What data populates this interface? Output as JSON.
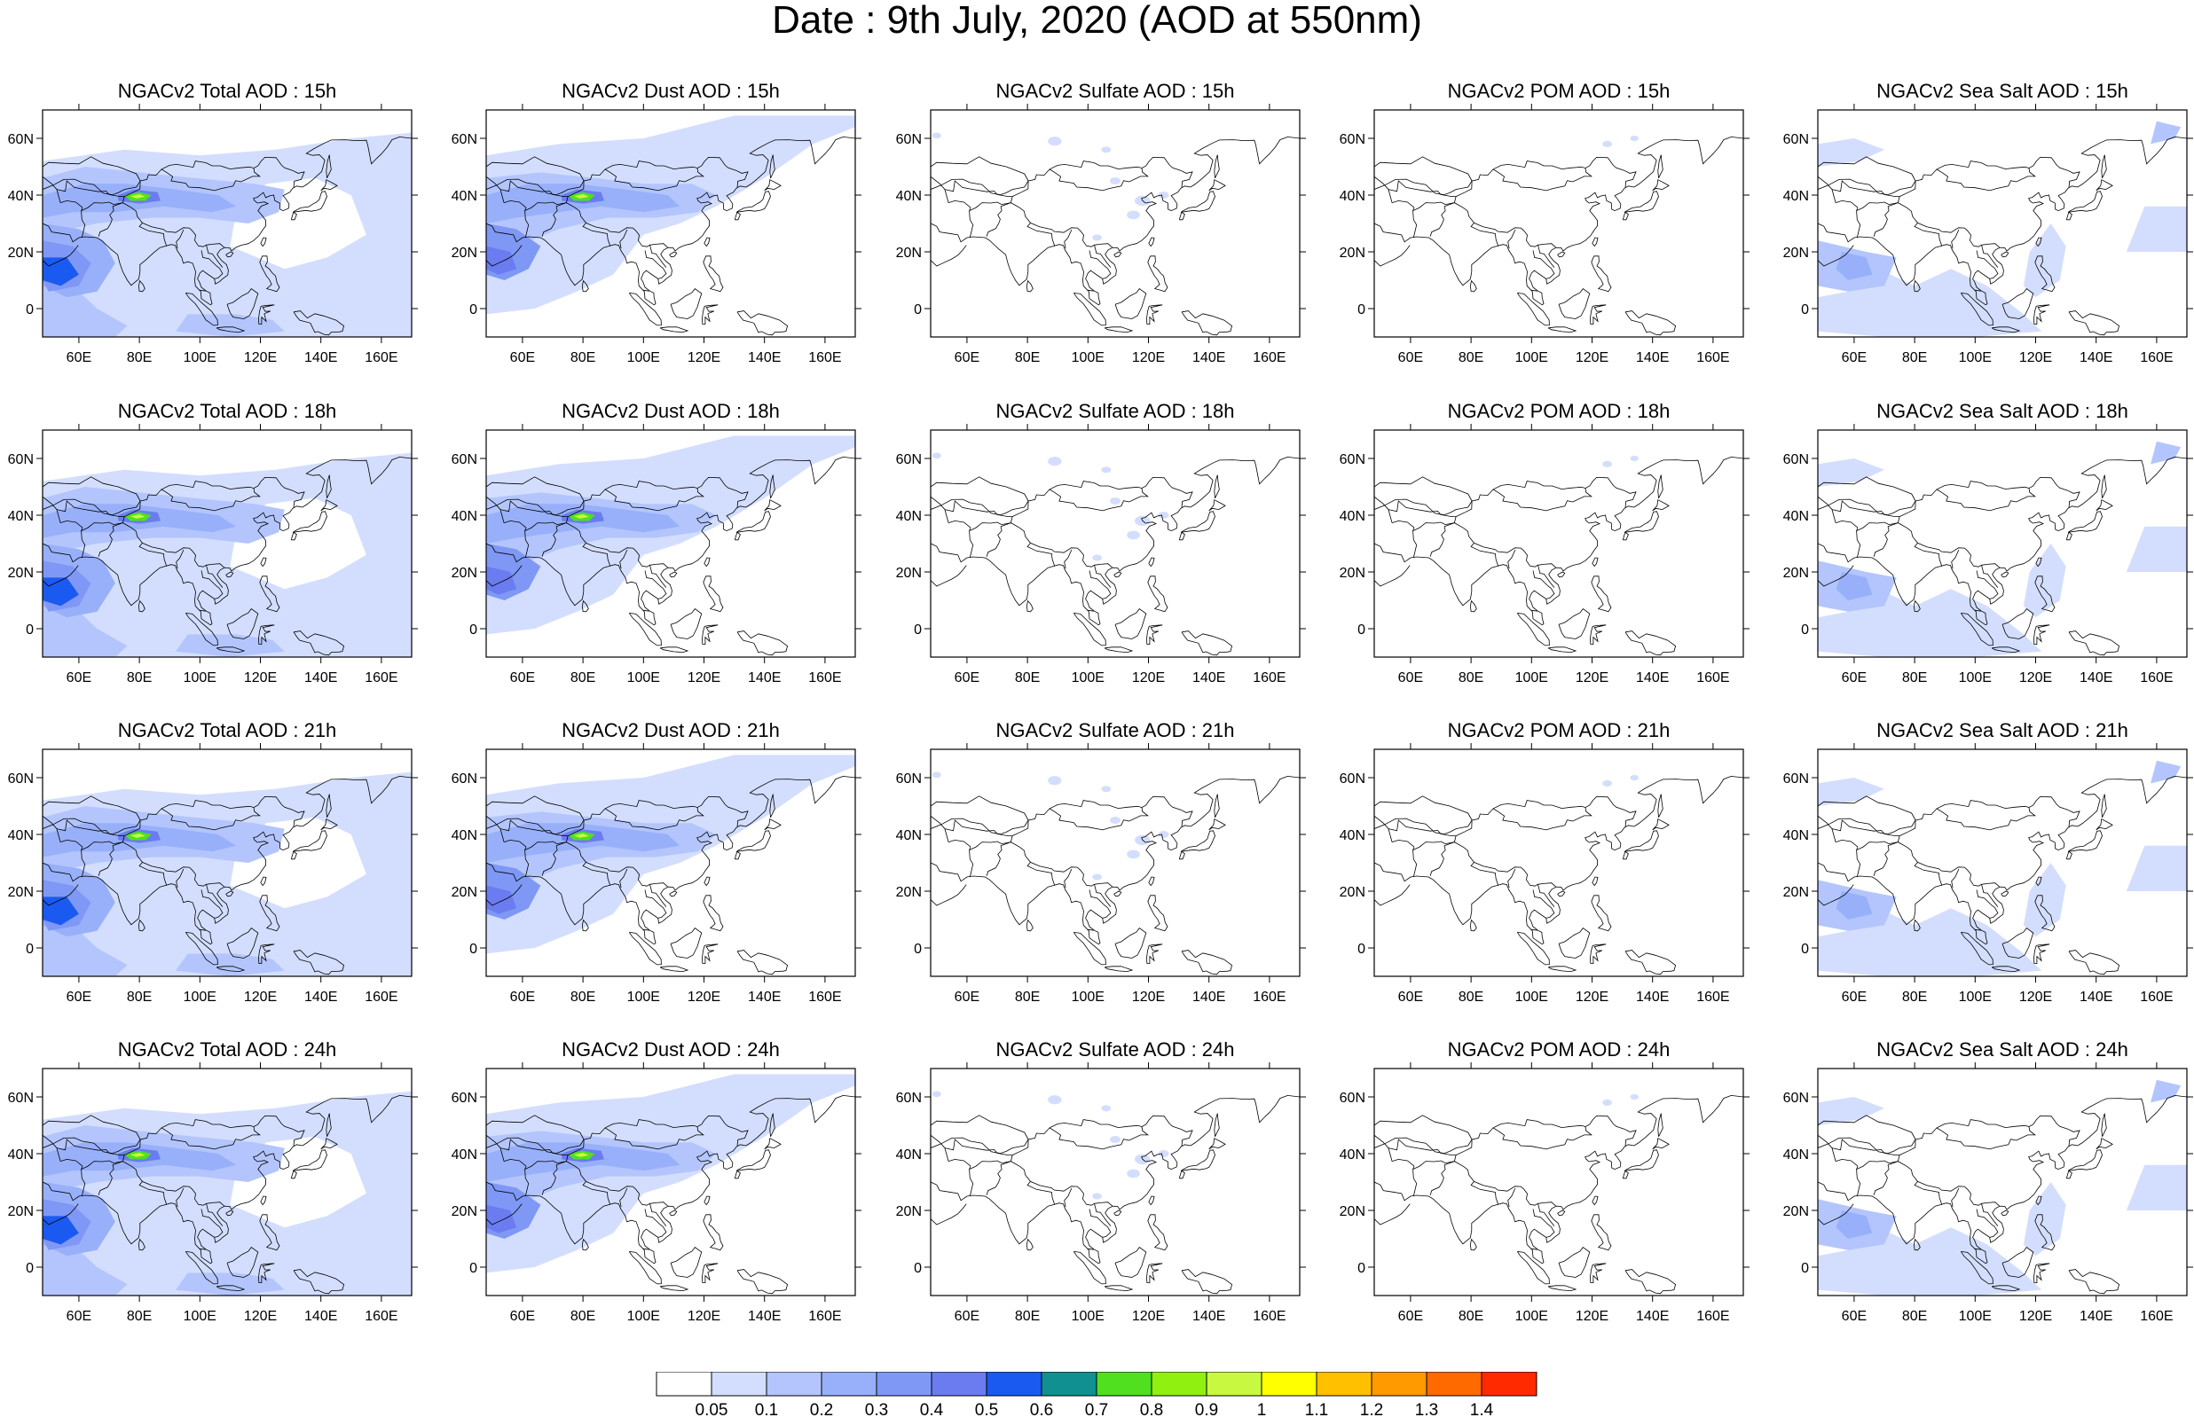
{
  "title": "Date : 9th July, 2020 (AOD at 550nm)",
  "map_axes": {
    "lat_ticks": [
      "60N",
      "40N",
      "20N",
      "0"
    ],
    "lon_ticks": [
      "60E",
      "80E",
      "100E",
      "120E",
      "140E",
      "160E"
    ]
  },
  "panels": [
    {
      "title": "NGACv2 Total AOD : 15h",
      "species": "total"
    },
    {
      "title": "NGACv2 Dust AOD : 15h",
      "species": "dust"
    },
    {
      "title": "NGACv2 Sulfate AOD : 15h",
      "species": "sulfate"
    },
    {
      "title": "NGACv2 POM AOD : 15h",
      "species": "pom"
    },
    {
      "title": "NGACv2 Sea Salt AOD : 15h",
      "species": "seasalt"
    },
    {
      "title": "NGACv2 Total AOD : 18h",
      "species": "total"
    },
    {
      "title": "NGACv2 Dust AOD : 18h",
      "species": "dust"
    },
    {
      "title": "NGACv2 Sulfate AOD : 18h",
      "species": "sulfate"
    },
    {
      "title": "NGACv2 POM AOD : 18h",
      "species": "pom"
    },
    {
      "title": "NGACv2 Sea Salt AOD : 18h",
      "species": "seasalt"
    },
    {
      "title": "NGACv2 Total AOD : 21h",
      "species": "total"
    },
    {
      "title": "NGACv2 Dust AOD : 21h",
      "species": "dust"
    },
    {
      "title": "NGACv2 Sulfate AOD : 21h",
      "species": "sulfate"
    },
    {
      "title": "NGACv2 POM AOD : 21h",
      "species": "pom"
    },
    {
      "title": "NGACv2 Sea Salt AOD : 21h",
      "species": "seasalt"
    },
    {
      "title": "NGACv2 Total AOD : 24h",
      "species": "total"
    },
    {
      "title": "NGACv2 Dust AOD : 24h",
      "species": "dust"
    },
    {
      "title": "NGACv2 Sulfate AOD : 24h",
      "species": "sulfate"
    },
    {
      "title": "NGACv2 POM AOD : 24h",
      "species": "pom"
    },
    {
      "title": "NGACv2 Sea Salt  AOD : 24h",
      "species": "seasalt"
    }
  ],
  "colorbar": {
    "labels": [
      "0.05",
      "0.1",
      "0.2",
      "0.3",
      "0.4",
      "0.5",
      "0.6",
      "0.7",
      "0.8",
      "0.9",
      "1",
      "1.1",
      "1.2",
      "1.3",
      "1.4"
    ],
    "colors": [
      "#ffffff",
      "#d3defe",
      "#b3c5fc",
      "#98b0fa",
      "#7f98f5",
      "#6a7cf0",
      "#1a5af0",
      "#109090",
      "#50e020",
      "#90f010",
      "#c8f840",
      "#ffff00",
      "#ffc000",
      "#ff9a00",
      "#ff6a00",
      "#ff2a00"
    ]
  }
}
